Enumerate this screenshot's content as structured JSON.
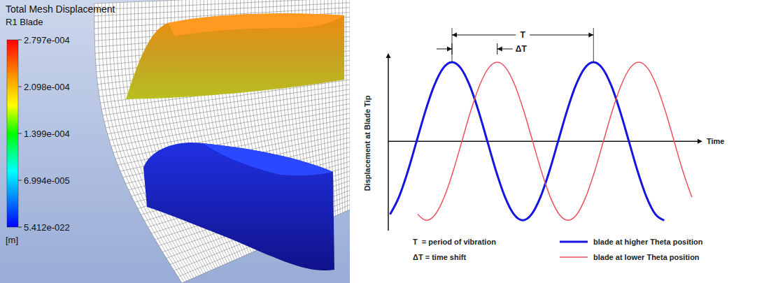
{
  "contour_panel": {
    "title": "Total Mesh Displacement",
    "subtitle": "R1 Blade",
    "unit": "[m]",
    "colorbar": {
      "range": [
        5.412e-22,
        0.0002797
      ],
      "ticks": [
        {
          "value": 0.0002797,
          "label": "2.797e-004"
        },
        {
          "value": 0.0002098,
          "label": "2.098e-004"
        },
        {
          "value": 0.0001399,
          "label": "1.399e-004"
        },
        {
          "value": 6.994e-05,
          "label": "6.994e-005"
        },
        {
          "value": 5.412e-22,
          "label": "5.412e-022"
        }
      ]
    }
  },
  "chart_data": {
    "type": "line",
    "y_label": "Displacement at Blade Tip",
    "x_label": "Time",
    "xlim": [
      0,
      2.2
    ],
    "ylim": [
      -1.13,
      1.08
    ],
    "time_axis_value": 0,
    "tick_labels": false,
    "grid": false,
    "legend": "bottom-right",
    "definitions": [
      "T  = period of vibration",
      "ΔT = time shift"
    ],
    "annotations": [
      {
        "text": "T",
        "x_start": 0.45,
        "x_end": 1.45
      },
      {
        "text": "ΔT",
        "x_start": 0.45,
        "x_end": 0.77
      }
    ],
    "series": [
      {
        "name": "blade at higher Theta position",
        "color": "#1515e0",
        "x": [
          0.0125,
          0.075,
          0.1375,
          0.2,
          0.2625,
          0.325,
          0.3875,
          0.45,
          0.5125,
          0.575,
          0.6375,
          0.7,
          0.7625,
          0.825,
          0.8875,
          0.95,
          1.0125,
          1.075,
          1.1375,
          1.2,
          1.2625,
          1.325,
          1.3875,
          1.45,
          1.5125,
          1.575,
          1.6375,
          1.7,
          1.7625,
          1.825,
          1.8875,
          1.95
        ],
        "values": [
          -0.924,
          -0.707,
          -0.383,
          0,
          0.383,
          0.707,
          0.924,
          1,
          0.924,
          0.707,
          0.383,
          0,
          -0.383,
          -0.707,
          -0.924,
          -1,
          -0.924,
          -0.707,
          -0.383,
          0,
          0.383,
          0.707,
          0.924,
          1,
          0.924,
          0.707,
          0.383,
          0,
          -0.383,
          -0.707,
          -0.924,
          -1
        ]
      },
      {
        "name": "blade at lower Theta position",
        "color": "#f05060",
        "x": [
          0.2075,
          0.27,
          0.3325,
          0.395,
          0.4575,
          0.52,
          0.5825,
          0.645,
          0.7075,
          0.77,
          0.8325,
          0.895,
          0.9575,
          1.02,
          1.0825,
          1.145,
          1.2075,
          1.27,
          1.3325,
          1.395,
          1.4575,
          1.52,
          1.5825,
          1.645,
          1.7075,
          1.77,
          1.8325,
          1.895,
          1.9575,
          2.02,
          2.0825,
          2.145
        ],
        "values": [
          -0.924,
          -1,
          -0.924,
          -0.707,
          -0.383,
          0,
          0.383,
          0.707,
          0.924,
          1,
          0.924,
          0.707,
          0.383,
          0,
          -0.383,
          -0.707,
          -0.924,
          -1,
          -0.924,
          -0.707,
          -0.383,
          0,
          0.383,
          0.707,
          0.924,
          1,
          0.924,
          0.707,
          0.383,
          0,
          -0.383,
          -0.707
        ]
      }
    ]
  }
}
